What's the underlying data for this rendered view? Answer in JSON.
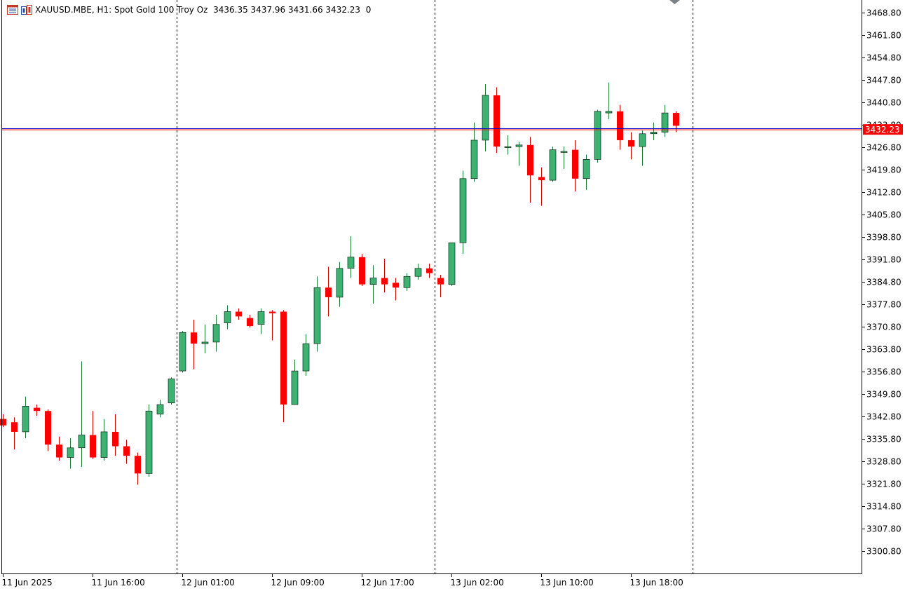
{
  "header": {
    "symbol": "XAUUSD.MBE, H1:",
    "description": "Spot Gold 100 Troy Oz",
    "ohlc": "3436.35 3437.96 3431.66 3432.23",
    "extra": "0",
    "icons": [
      "chart-list-icon",
      "trading-icon"
    ]
  },
  "colors": {
    "bull": "#3cb371",
    "bear": "#ff0000",
    "candle_outline": "#000000",
    "wick_bull": "#1f7a3d",
    "wick_bear": "#cc0000",
    "bid_line": "#ff0000",
    "ask_line": "#0000cc",
    "price_tag_bg": "#ff0000",
    "price_tag_text": "#ffffff",
    "axis": "#000000",
    "grid_separator": "#000000"
  },
  "chart_data": {
    "type": "candlestick",
    "timeframe": "H1",
    "ylim": [
      3296.8,
      3472.8
    ],
    "y_ticks": [
      3468.8,
      3461.8,
      3454.8,
      3447.8,
      3440.8,
      3433.8,
      3426.8,
      3419.8,
      3412.8,
      3405.8,
      3398.8,
      3391.8,
      3384.8,
      3377.8,
      3370.8,
      3363.8,
      3356.8,
      3349.8,
      3342.8,
      3335.8,
      3328.8,
      3321.8,
      3314.8,
      3307.8,
      3300.8
    ],
    "x_labels": [
      {
        "index": 0,
        "label": "11 Jun 2025"
      },
      {
        "index": 8,
        "label": "11 Jun 16:00"
      },
      {
        "index": 16,
        "label": "12 Jun 01:00"
      },
      {
        "index": 24,
        "label": "12 Jun 09:00"
      },
      {
        "index": 32,
        "label": "12 Jun 17:00"
      },
      {
        "index": 40,
        "label": "13 Jun 02:00"
      },
      {
        "index": 48,
        "label": "13 Jun 10:00"
      },
      {
        "index": 56,
        "label": "13 Jun 18:00"
      }
    ],
    "day_separators_after_index": [
      15.5,
      38.5,
      61.5
    ],
    "current_bid": 3432.23,
    "current_ask": 3432.6,
    "candles": [
      {
        "o": 3342.0,
        "h": 3343.5,
        "l": 3339.5,
        "c": 3340.0
      },
      {
        "o": 3341.0,
        "h": 3342.5,
        "l": 3332.5,
        "c": 3338.0
      },
      {
        "o": 3338.0,
        "h": 3349.0,
        "l": 3336.0,
        "c": 3346.0
      },
      {
        "o": 3345.5,
        "h": 3346.5,
        "l": 3343.0,
        "c": 3344.5
      },
      {
        "o": 3344.5,
        "h": 3345.0,
        "l": 3332.0,
        "c": 3334.0
      },
      {
        "o": 3334.0,
        "h": 3336.5,
        "l": 3329.0,
        "c": 3330.0
      },
      {
        "o": 3330.0,
        "h": 3336.0,
        "l": 3326.5,
        "c": 3333.0
      },
      {
        "o": 3333.0,
        "h": 3360.0,
        "l": 3327.0,
        "c": 3337.0
      },
      {
        "o": 3337.0,
        "h": 3344.5,
        "l": 3329.5,
        "c": 3330.0
      },
      {
        "o": 3330.0,
        "h": 3342.0,
        "l": 3329.0,
        "c": 3338.0
      },
      {
        "o": 3338.0,
        "h": 3343.5,
        "l": 3330.5,
        "c": 3333.5
      },
      {
        "o": 3333.5,
        "h": 3335.5,
        "l": 3328.0,
        "c": 3330.5
      },
      {
        "o": 3330.5,
        "h": 3331.5,
        "l": 3321.5,
        "c": 3325.0
      },
      {
        "o": 3325.0,
        "h": 3346.5,
        "l": 3324.0,
        "c": 3344.5
      },
      {
        "o": 3343.5,
        "h": 3348.0,
        "l": 3342.5,
        "c": 3346.5
      },
      {
        "o": 3347.0,
        "h": 3355.0,
        "l": 3346.5,
        "c": 3354.5
      },
      {
        "o": 3357.0,
        "h": 3369.5,
        "l": 3356.5,
        "c": 3369.0
      },
      {
        "o": 3369.0,
        "h": 3373.0,
        "l": 3357.5,
        "c": 3365.5
      },
      {
        "o": 3365.5,
        "h": 3371.5,
        "l": 3362.5,
        "c": 3366.0
      },
      {
        "o": 3366.0,
        "h": 3374.5,
        "l": 3363.0,
        "c": 3371.5
      },
      {
        "o": 3372.0,
        "h": 3377.5,
        "l": 3370.0,
        "c": 3375.5
      },
      {
        "o": 3375.5,
        "h": 3376.5,
        "l": 3373.0,
        "c": 3374.0
      },
      {
        "o": 3373.5,
        "h": 3374.5,
        "l": 3370.5,
        "c": 3371.0
      },
      {
        "o": 3371.5,
        "h": 3376.5,
        "l": 3368.5,
        "c": 3375.5
      },
      {
        "o": 3375.5,
        "h": 3376.0,
        "l": 3366.5,
        "c": 3375.0
      },
      {
        "o": 3375.5,
        "h": 3376.0,
        "l": 3341.0,
        "c": 3346.5
      },
      {
        "o": 3346.5,
        "h": 3360.5,
        "l": 3346.5,
        "c": 3357.0
      },
      {
        "o": 3357.0,
        "h": 3368.5,
        "l": 3355.5,
        "c": 3365.5
      },
      {
        "o": 3365.5,
        "h": 3386.5,
        "l": 3363.0,
        "c": 3383.0
      },
      {
        "o": 3383.0,
        "h": 3389.5,
        "l": 3374.0,
        "c": 3380.0
      },
      {
        "o": 3380.0,
        "h": 3391.0,
        "l": 3377.0,
        "c": 3389.0
      },
      {
        "o": 3389.0,
        "h": 3399.0,
        "l": 3386.0,
        "c": 3392.5
      },
      {
        "o": 3392.5,
        "h": 3393.5,
        "l": 3383.5,
        "c": 3384.0
      },
      {
        "o": 3384.0,
        "h": 3390.0,
        "l": 3378.0,
        "c": 3386.0
      },
      {
        "o": 3386.0,
        "h": 3392.0,
        "l": 3381.5,
        "c": 3384.0
      },
      {
        "o": 3384.5,
        "h": 3386.0,
        "l": 3379.0,
        "c": 3383.0
      },
      {
        "o": 3383.0,
        "h": 3387.5,
        "l": 3382.0,
        "c": 3386.5
      },
      {
        "o": 3386.5,
        "h": 3390.5,
        "l": 3385.5,
        "c": 3389.0
      },
      {
        "o": 3389.0,
        "h": 3390.5,
        "l": 3386.0,
        "c": 3387.5
      },
      {
        "o": 3386.0,
        "h": 3387.0,
        "l": 3380.0,
        "c": 3384.0
      },
      {
        "o": 3384.0,
        "h": 3397.0,
        "l": 3383.5,
        "c": 3397.0
      },
      {
        "o": 3397.0,
        "h": 3419.5,
        "l": 3393.5,
        "c": 3417.0
      },
      {
        "o": 3417.0,
        "h": 3434.5,
        "l": 3416.0,
        "c": 3429.0
      },
      {
        "o": 3429.0,
        "h": 3446.5,
        "l": 3425.5,
        "c": 3443.0
      },
      {
        "o": 3443.0,
        "h": 3445.5,
        "l": 3425.0,
        "c": 3427.0
      },
      {
        "o": 3427.0,
        "h": 3430.5,
        "l": 3424.5,
        "c": 3427.0
      },
      {
        "o": 3427.0,
        "h": 3428.5,
        "l": 3421.0,
        "c": 3427.5
      },
      {
        "o": 3427.5,
        "h": 3430.0,
        "l": 3409.5,
        "c": 3418.0
      },
      {
        "o": 3417.5,
        "h": 3420.5,
        "l": 3408.5,
        "c": 3416.5
      },
      {
        "o": 3416.5,
        "h": 3427.0,
        "l": 3416.0,
        "c": 3426.0
      },
      {
        "o": 3425.5,
        "h": 3427.0,
        "l": 3420.0,
        "c": 3425.5
      },
      {
        "o": 3426.0,
        "h": 3429.0,
        "l": 3413.0,
        "c": 3417.0
      },
      {
        "o": 3417.0,
        "h": 3424.5,
        "l": 3413.5,
        "c": 3423.0
      },
      {
        "o": 3423.0,
        "h": 3438.5,
        "l": 3422.0,
        "c": 3438.0
      },
      {
        "o": 3437.5,
        "h": 3447.0,
        "l": 3435.5,
        "c": 3438.0
      },
      {
        "o": 3438.0,
        "h": 3440.0,
        "l": 3426.0,
        "c": 3429.0
      },
      {
        "o": 3429.0,
        "h": 3431.5,
        "l": 3423.0,
        "c": 3427.0
      },
      {
        "o": 3427.0,
        "h": 3432.0,
        "l": 3421.0,
        "c": 3431.0
      },
      {
        "o": 3431.0,
        "h": 3434.5,
        "l": 3429.0,
        "c": 3431.5
      },
      {
        "o": 3431.5,
        "h": 3440.0,
        "l": 3430.0,
        "c": 3437.5
      },
      {
        "o": 3437.5,
        "h": 3438.0,
        "l": 3431.5,
        "c": 3433.5
      }
    ]
  }
}
